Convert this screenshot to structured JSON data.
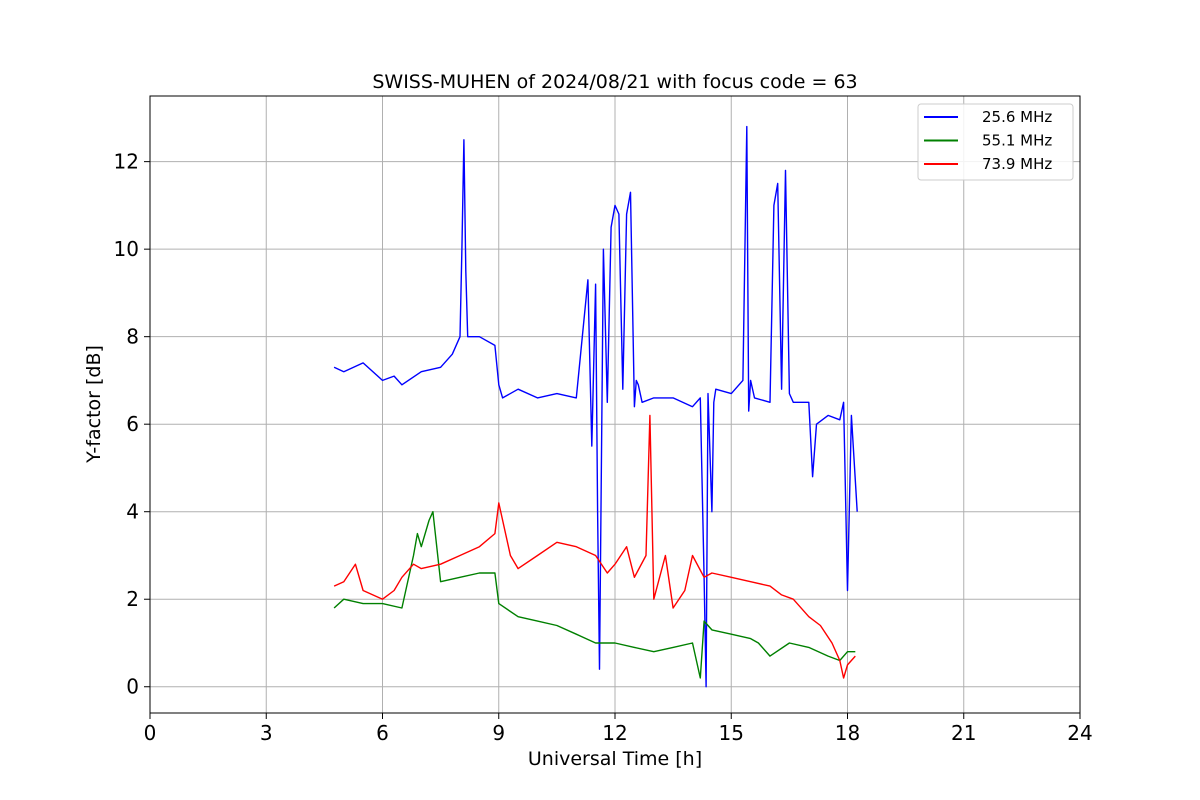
{
  "chart_data": {
    "type": "line",
    "title": "SWISS-MUHEN of 2024/08/21 with focus code = 63",
    "xlabel": "Universal Time [h]",
    "ylabel": "Y-factor [dB]",
    "xlim": [
      0,
      24
    ],
    "ylim": [
      -0.6,
      13.5
    ],
    "xticks": [
      0,
      3,
      6,
      9,
      12,
      15,
      18,
      21,
      24
    ],
    "yticks": [
      0,
      2,
      4,
      6,
      8,
      10,
      12
    ],
    "grid": true,
    "legend_position": "top-right",
    "series": [
      {
        "name": "25.6 MHz",
        "color": "#0000ff",
        "x": [
          4.75,
          5.0,
          5.5,
          6.0,
          6.3,
          6.5,
          7.0,
          7.5,
          7.8,
          8.0,
          8.05,
          8.1,
          8.15,
          8.2,
          8.5,
          8.9,
          9.0,
          9.1,
          9.5,
          10.0,
          10.5,
          11.0,
          11.3,
          11.4,
          11.5,
          11.55,
          11.6,
          11.7,
          11.8,
          11.9,
          12.0,
          12.1,
          12.2,
          12.3,
          12.4,
          12.5,
          12.55,
          12.6,
          12.7,
          13.0,
          13.5,
          14.0,
          14.2,
          14.3,
          14.35,
          14.4,
          14.5,
          14.55,
          14.6,
          15.0,
          15.3,
          15.4,
          15.45,
          15.5,
          15.6,
          16.0,
          16.1,
          16.2,
          16.3,
          16.4,
          16.5,
          16.6,
          17.0,
          17.1,
          17.2,
          17.5,
          17.8,
          17.9,
          18.0,
          18.1,
          18.25
        ],
        "y": [
          7.3,
          7.2,
          7.4,
          7.0,
          7.1,
          6.9,
          7.2,
          7.3,
          7.6,
          8.0,
          10.0,
          12.5,
          9.5,
          8.0,
          8.0,
          7.8,
          6.9,
          6.6,
          6.8,
          6.6,
          6.7,
          6.6,
          9.3,
          5.5,
          9.2,
          4.0,
          0.4,
          10.0,
          6.5,
          10.5,
          11.0,
          10.8,
          6.8,
          10.8,
          11.3,
          6.4,
          7.0,
          6.9,
          6.5,
          6.6,
          6.6,
          6.4,
          6.6,
          2.5,
          0.0,
          6.7,
          4.0,
          6.5,
          6.8,
          6.7,
          7.0,
          12.8,
          6.3,
          7.0,
          6.6,
          6.5,
          11.0,
          11.5,
          6.8,
          11.8,
          6.7,
          6.5,
          6.5,
          4.8,
          6.0,
          6.2,
          6.1,
          6.5,
          2.2,
          6.2,
          4.0
        ]
      },
      {
        "name": "55.1 MHz",
        "color": "#008000",
        "x": [
          4.75,
          5.0,
          5.5,
          6.0,
          6.5,
          6.8,
          6.9,
          7.0,
          7.2,
          7.3,
          7.5,
          8.0,
          8.5,
          8.9,
          9.0,
          9.5,
          10.0,
          10.5,
          11.0,
          11.5,
          12.0,
          12.5,
          13.0,
          13.5,
          14.0,
          14.2,
          14.3,
          14.4,
          14.5,
          15.0,
          15.5,
          15.7,
          16.0,
          16.5,
          17.0,
          17.5,
          17.8,
          18.0,
          18.2
        ],
        "y": [
          1.8,
          2.0,
          1.9,
          1.9,
          1.8,
          3.0,
          3.5,
          3.2,
          3.8,
          4.0,
          2.4,
          2.5,
          2.6,
          2.6,
          1.9,
          1.6,
          1.5,
          1.4,
          1.2,
          1.0,
          1.0,
          0.9,
          0.8,
          0.9,
          1.0,
          0.2,
          1.5,
          1.4,
          1.3,
          1.2,
          1.1,
          1.0,
          0.7,
          1.0,
          0.9,
          0.7,
          0.6,
          0.8,
          0.8
        ]
      },
      {
        "name": "73.9 MHz",
        "color": "#ff0000",
        "x": [
          4.75,
          5.0,
          5.3,
          5.5,
          6.0,
          6.3,
          6.5,
          6.8,
          7.0,
          7.5,
          8.0,
          8.5,
          8.9,
          9.0,
          9.3,
          9.5,
          10.0,
          10.5,
          11.0,
          11.5,
          11.8,
          12.0,
          12.3,
          12.5,
          12.8,
          12.9,
          13.0,
          13.3,
          13.5,
          13.8,
          14.0,
          14.3,
          14.5,
          15.0,
          15.5,
          16.0,
          16.3,
          16.6,
          17.0,
          17.3,
          17.6,
          17.8,
          17.9,
          18.0,
          18.2
        ],
        "y": [
          2.3,
          2.4,
          2.8,
          2.2,
          2.0,
          2.2,
          2.5,
          2.8,
          2.7,
          2.8,
          3.0,
          3.2,
          3.5,
          4.2,
          3.0,
          2.7,
          3.0,
          3.3,
          3.2,
          3.0,
          2.6,
          2.8,
          3.2,
          2.5,
          3.0,
          6.2,
          2.0,
          3.0,
          1.8,
          2.2,
          3.0,
          2.5,
          2.6,
          2.5,
          2.4,
          2.3,
          2.1,
          2.0,
          1.6,
          1.4,
          1.0,
          0.6,
          0.2,
          0.5,
          0.7
        ]
      }
    ]
  }
}
